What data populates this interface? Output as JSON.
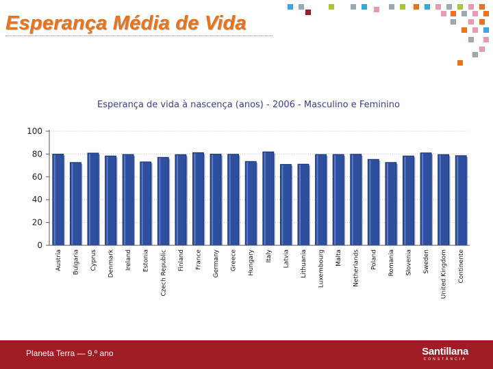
{
  "slide": {
    "title": "Esperança Média de Vida",
    "title_color": "#e8731a"
  },
  "footer": {
    "text": "Planeta Terra — 9.º ano",
    "brand": "Santillana",
    "brand_sub": "CONSTÂNCIA",
    "background": "#a01c24"
  },
  "decoration": {
    "colors": [
      "#a4c639",
      "#3aa6dd",
      "#9aa8b4",
      "#e89ab4",
      "#e8731a",
      "#a01c24",
      "#f4b400"
    ]
  },
  "chart_data": {
    "type": "bar",
    "title": "Esperança de vida à nascença (anos) - 2006 - Masculino e Feminino",
    "xlabel": "",
    "ylabel": "",
    "ylim": [
      0,
      100
    ],
    "yticks": [
      0,
      20,
      40,
      60,
      80,
      100
    ],
    "grid": true,
    "bar_color": "#2e4e9e",
    "categories": [
      "Austria",
      "Bulgaria",
      "Cyprus",
      "Denmark",
      "Ireland",
      "Estonia",
      "Czech Republic",
      "Finland",
      "France",
      "Germany",
      "Greece",
      "Hungary",
      "Italy",
      "Latvia",
      "Lithuania",
      "Luxembourg",
      "Malta",
      "Netherlands",
      "Poland",
      "Romania",
      "Slovenia",
      "Sweden",
      "United Kingdom",
      "Continente"
    ],
    "values": [
      79.9,
      72.6,
      80.8,
      78.3,
      79.6,
      73.1,
      77.1,
      79.5,
      81.2,
      79.9,
      79.8,
      73.5,
      81.9,
      70.9,
      71.1,
      79.6,
      79.6,
      79.8,
      75.3,
      72.6,
      78.3,
      81.0,
      79.5,
      78.6
    ]
  }
}
